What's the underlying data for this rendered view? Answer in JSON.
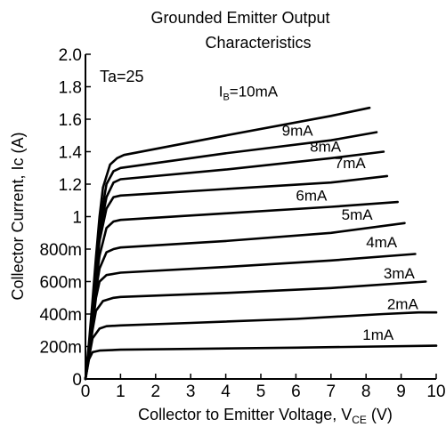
{
  "chart_data": {
    "type": "line",
    "title_line1": "Grounded Emitter Output",
    "title_line2": "Characteristics",
    "xlabel": "Collector to Emitter Voltage, V",
    "xlabel_sub": "CE",
    "xlabel_unit": " (V)",
    "ylabel": "Collector Current, Ic (A)",
    "xlim": [
      0,
      10
    ],
    "ylim": [
      0,
      2.0
    ],
    "x_ticks": [
      {
        "value": 0,
        "label": "0"
      },
      {
        "value": 1,
        "label": "1"
      },
      {
        "value": 2,
        "label": "2"
      },
      {
        "value": 3,
        "label": "3"
      },
      {
        "value": 4,
        "label": "4"
      },
      {
        "value": 5,
        "label": "5"
      },
      {
        "value": 6,
        "label": "6"
      },
      {
        "value": 7,
        "label": "7"
      },
      {
        "value": 8,
        "label": "8"
      },
      {
        "value": 9,
        "label": "9"
      },
      {
        "value": 10,
        "label": "10"
      }
    ],
    "y_ticks": [
      {
        "value": 0,
        "label": "0"
      },
      {
        "value": 0.2,
        "label": "200m"
      },
      {
        "value": 0.4,
        "label": "400m"
      },
      {
        "value": 0.6,
        "label": "600m"
      },
      {
        "value": 0.8,
        "label": "800m"
      },
      {
        "value": 1.0,
        "label": "1"
      },
      {
        "value": 1.2,
        "label": "1.2"
      },
      {
        "value": 1.4,
        "label": "1.4"
      },
      {
        "value": 1.6,
        "label": "1.6"
      },
      {
        "value": 1.8,
        "label": "1.8"
      },
      {
        "value": 2.0,
        "label": "2.0"
      }
    ],
    "grid": false,
    "annotation": "Ta=25",
    "series": [
      {
        "name": "1mA",
        "label_pos": [
          7.9,
          0.24
        ],
        "points": [
          [
            0,
            0
          ],
          [
            0.1,
            0.12
          ],
          [
            0.2,
            0.165
          ],
          [
            0.4,
            0.175
          ],
          [
            1,
            0.18
          ],
          [
            3,
            0.185
          ],
          [
            6,
            0.193
          ],
          [
            10,
            0.205
          ]
        ]
      },
      {
        "name": "2mA",
        "label_pos": [
          8.6,
          0.43
        ],
        "points": [
          [
            0,
            0
          ],
          [
            0.1,
            0.13
          ],
          [
            0.2,
            0.25
          ],
          [
            0.4,
            0.31
          ],
          [
            0.6,
            0.325
          ],
          [
            1,
            0.33
          ],
          [
            3,
            0.345
          ],
          [
            6,
            0.37
          ],
          [
            8.5,
            0.4
          ],
          [
            9.5,
            0.41
          ],
          [
            10,
            0.41
          ]
        ]
      },
      {
        "name": "3mA",
        "label_pos": [
          8.5,
          0.62
        ],
        "points": [
          [
            0,
            0
          ],
          [
            0.1,
            0.14
          ],
          [
            0.2,
            0.3
          ],
          [
            0.3,
            0.42
          ],
          [
            0.5,
            0.48
          ],
          [
            0.8,
            0.5
          ],
          [
            1,
            0.505
          ],
          [
            4,
            0.53
          ],
          [
            7,
            0.56
          ],
          [
            9.7,
            0.6
          ]
        ]
      },
      {
        "name": "4mA",
        "label_pos": [
          8.0,
          0.81
        ],
        "points": [
          [
            0,
            0
          ],
          [
            0.1,
            0.15
          ],
          [
            0.2,
            0.32
          ],
          [
            0.3,
            0.5
          ],
          [
            0.4,
            0.6
          ],
          [
            0.6,
            0.64
          ],
          [
            1,
            0.655
          ],
          [
            4,
            0.69
          ],
          [
            7,
            0.73
          ],
          [
            9.4,
            0.77
          ]
        ]
      },
      {
        "name": "5mA",
        "label_pos": [
          7.3,
          0.98
        ],
        "points": [
          [
            0,
            0
          ],
          [
            0.1,
            0.16
          ],
          [
            0.2,
            0.35
          ],
          [
            0.3,
            0.55
          ],
          [
            0.4,
            0.68
          ],
          [
            0.6,
            0.78
          ],
          [
            0.8,
            0.8
          ],
          [
            1,
            0.81
          ],
          [
            4,
            0.85
          ],
          [
            7,
            0.9
          ],
          [
            9.1,
            0.96
          ]
        ]
      },
      {
        "name": "6mA",
        "label_pos": [
          6.0,
          1.1
        ],
        "points": [
          [
            0,
            0
          ],
          [
            0.1,
            0.17
          ],
          [
            0.2,
            0.38
          ],
          [
            0.3,
            0.6
          ],
          [
            0.4,
            0.76
          ],
          [
            0.6,
            0.93
          ],
          [
            0.8,
            0.97
          ],
          [
            1,
            0.98
          ],
          [
            4,
            1.02
          ],
          [
            7,
            1.06
          ],
          [
            8.9,
            1.09
          ]
        ]
      },
      {
        "name": "7mA",
        "label_pos": [
          7.1,
          1.3
        ],
        "points": [
          [
            0,
            0
          ],
          [
            0.1,
            0.18
          ],
          [
            0.2,
            0.4
          ],
          [
            0.3,
            0.64
          ],
          [
            0.4,
            0.85
          ],
          [
            0.6,
            1.05
          ],
          [
            0.8,
            1.12
          ],
          [
            1,
            1.13
          ],
          [
            4,
            1.17
          ],
          [
            7,
            1.21
          ],
          [
            8.6,
            1.25
          ]
        ]
      },
      {
        "name": "8mA",
        "label_pos": [
          6.4,
          1.4
        ],
        "points": [
          [
            0,
            0
          ],
          [
            0.1,
            0.19
          ],
          [
            0.2,
            0.42
          ],
          [
            0.3,
            0.67
          ],
          [
            0.4,
            0.9
          ],
          [
            0.6,
            1.12
          ],
          [
            0.8,
            1.21
          ],
          [
            1,
            1.23
          ],
          [
            4,
            1.29
          ],
          [
            7,
            1.36
          ],
          [
            8.5,
            1.4
          ]
        ]
      },
      {
        "name": "9mA",
        "label_pos": [
          5.6,
          1.5
        ],
        "points": [
          [
            0,
            0
          ],
          [
            0.1,
            0.2
          ],
          [
            0.2,
            0.44
          ],
          [
            0.3,
            0.7
          ],
          [
            0.4,
            0.95
          ],
          [
            0.6,
            1.2
          ],
          [
            0.8,
            1.28
          ],
          [
            1,
            1.3
          ],
          [
            4,
            1.39
          ],
          [
            7,
            1.47
          ],
          [
            8.3,
            1.52
          ]
        ]
      },
      {
        "name": "I_B=10mA",
        "label_pos": [
          3.8,
          1.74
        ],
        "label_main": "I",
        "label_sub": "B",
        "label_rest": "=10mA",
        "points": [
          [
            0,
            0
          ],
          [
            0.1,
            0.22
          ],
          [
            0.2,
            0.48
          ],
          [
            0.3,
            0.75
          ],
          [
            0.4,
            1.0
          ],
          [
            0.5,
            1.18
          ],
          [
            0.7,
            1.32
          ],
          [
            0.9,
            1.36
          ],
          [
            1.1,
            1.38
          ],
          [
            4,
            1.5
          ],
          [
            7,
            1.62
          ],
          [
            8.1,
            1.67
          ]
        ]
      }
    ]
  },
  "style": {
    "line_color": "#000000",
    "background": "#ffffff"
  }
}
